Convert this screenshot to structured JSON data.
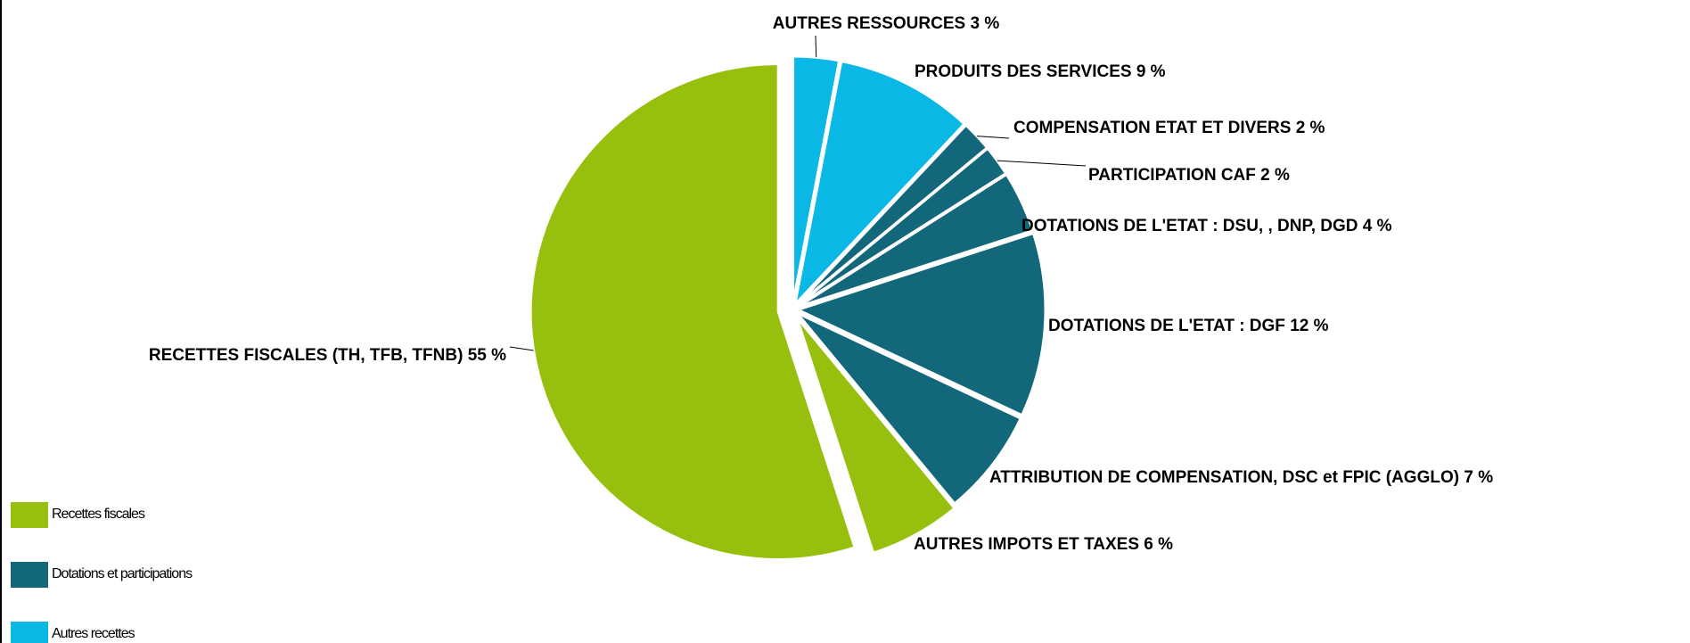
{
  "chart_data": {
    "type": "pie",
    "categories": [
      "AUTRES RESSOURCES",
      "PRODUITS DES SERVICES",
      "COMPENSATION ETAT ET DIVERS",
      "PARTICIPATION CAF",
      "DOTATIONS DE L'ETAT : DSU, , DNP, DGD",
      "DOTATIONS DE L'ETAT : DGF",
      "ATTRIBUTION DE COMPENSATION,  DSC et FPIC (AGGLO)",
      "AUTRES IMPOTS ET TAXES",
      "RECETTES FISCALES (TH, TFB, TFNB)"
    ],
    "values": [
      3,
      9,
      2,
      2,
      4,
      12,
      7,
      6,
      55
    ],
    "value_labels": [
      "3 %",
      "9 %",
      "2 %",
      "2 %",
      "4 %",
      "12 %",
      "7 %",
      "6 %",
      "55 %"
    ],
    "colors": [
      "#0ab8e6",
      "#0ab8e6",
      "#13677a",
      "#13677a",
      "#13677a",
      "#13677a",
      "#13677a",
      "#97bf0d",
      "#97bf0d"
    ],
    "legend": [
      {
        "name": "Recettes fiscales",
        "color": "#97bf0d"
      },
      {
        "name": "Dotations et participations",
        "color": "#13677a"
      },
      {
        "name": "Autres recettes",
        "color": "#0ab8e6"
      }
    ]
  }
}
